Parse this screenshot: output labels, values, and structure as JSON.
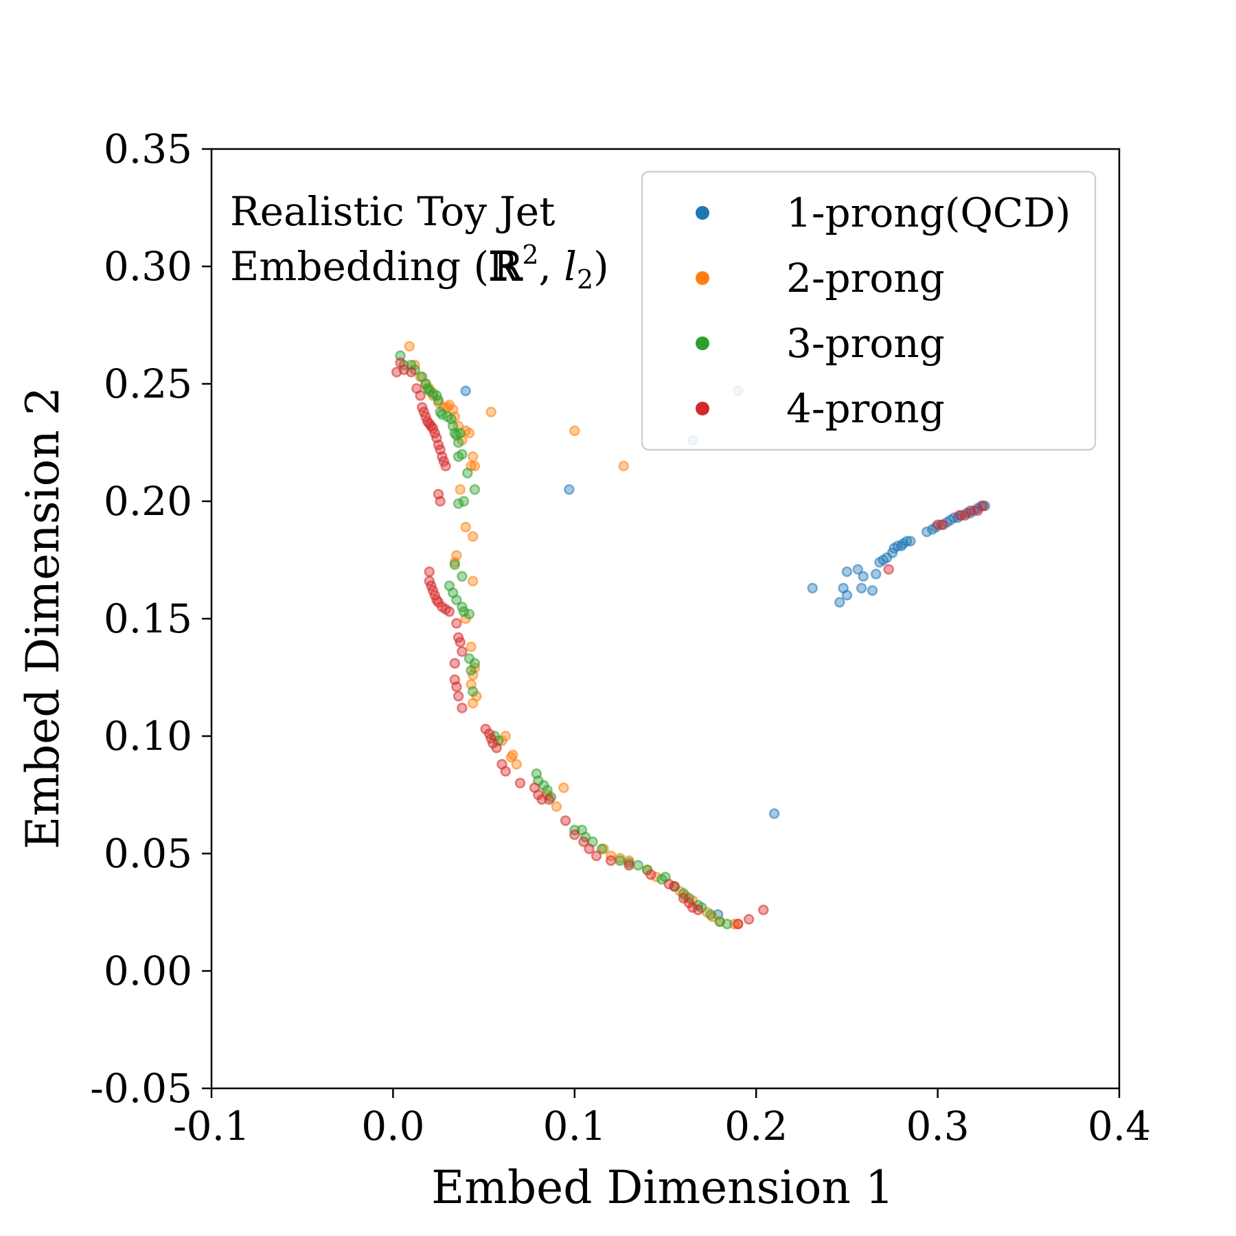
{
  "chart_data": {
    "type": "scatter",
    "xlabel": "Embed Dimension 1",
    "ylabel": "Embed Dimension 2",
    "xlim": [
      -0.1,
      0.4
    ],
    "ylim": [
      -0.05,
      0.35
    ],
    "xticks": [
      -0.1,
      0.0,
      0.1,
      0.2,
      0.3,
      0.4
    ],
    "xtick_labels": [
      "-0.1",
      "0.0",
      "0.1",
      "0.2",
      "0.3",
      "0.4"
    ],
    "yticks": [
      -0.05,
      0.0,
      0.05,
      0.1,
      0.15,
      0.2,
      0.25,
      0.3,
      0.35
    ],
    "ytick_labels": [
      "-0.05",
      "0.00",
      "0.05",
      "0.10",
      "0.15",
      "0.20",
      "0.25",
      "0.30",
      "0.35"
    ],
    "annotation": {
      "line1": "Realistic Toy Jet",
      "line2_prefix": "Embedding (",
      "line2_bb": "ℝ",
      "line2_sup": "2",
      "line2_mid": ", ",
      "line2_l": "l",
      "line2_sub": "2",
      "line2_suffix": ")"
    },
    "legend_position": "top-right",
    "grid": false,
    "series": [
      {
        "name": "1-prong(QCD)",
        "color": "#1f77b4",
        "points": [
          [
            0.04,
            0.247
          ],
          [
            0.097,
            0.205
          ],
          [
            0.165,
            0.226
          ],
          [
            0.19,
            0.247
          ],
          [
            0.179,
            0.024
          ],
          [
            0.21,
            0.067
          ],
          [
            0.231,
            0.163
          ],
          [
            0.246,
            0.157
          ],
          [
            0.248,
            0.163
          ],
          [
            0.25,
            0.16
          ],
          [
            0.25,
            0.17
          ],
          [
            0.256,
            0.171
          ],
          [
            0.258,
            0.163
          ],
          [
            0.259,
            0.168
          ],
          [
            0.264,
            0.162
          ],
          [
            0.266,
            0.169
          ],
          [
            0.268,
            0.174
          ],
          [
            0.27,
            0.175
          ],
          [
            0.272,
            0.176
          ],
          [
            0.275,
            0.178
          ],
          [
            0.276,
            0.18
          ],
          [
            0.278,
            0.181
          ],
          [
            0.28,
            0.181
          ],
          [
            0.281,
            0.182
          ],
          [
            0.283,
            0.183
          ],
          [
            0.285,
            0.183
          ],
          [
            0.294,
            0.187
          ],
          [
            0.297,
            0.188
          ],
          [
            0.299,
            0.189
          ],
          [
            0.302,
            0.19
          ],
          [
            0.305,
            0.191
          ],
          [
            0.307,
            0.192
          ],
          [
            0.309,
            0.193
          ],
          [
            0.311,
            0.193
          ],
          [
            0.313,
            0.194
          ],
          [
            0.316,
            0.195
          ],
          [
            0.318,
            0.195
          ],
          [
            0.32,
            0.196
          ],
          [
            0.322,
            0.197
          ],
          [
            0.324,
            0.198
          ],
          [
            0.326,
            0.198
          ]
        ]
      },
      {
        "name": "2-prong",
        "color": "#ff7f0e",
        "points": [
          [
            0.009,
            0.266
          ],
          [
            0.012,
            0.258
          ],
          [
            0.015,
            0.253
          ],
          [
            0.018,
            0.25
          ],
          [
            0.02,
            0.248
          ],
          [
            0.022,
            0.245
          ],
          [
            0.025,
            0.242
          ],
          [
            0.028,
            0.24
          ],
          [
            0.03,
            0.24
          ],
          [
            0.031,
            0.241
          ],
          [
            0.033,
            0.239
          ],
          [
            0.034,
            0.236
          ],
          [
            0.036,
            0.232
          ],
          [
            0.038,
            0.226
          ],
          [
            0.04,
            0.23
          ],
          [
            0.042,
            0.229
          ],
          [
            0.044,
            0.219
          ],
          [
            0.043,
            0.215
          ],
          [
            0.045,
            0.215
          ],
          [
            0.054,
            0.238
          ],
          [
            0.1,
            0.23
          ],
          [
            0.127,
            0.215
          ],
          [
            0.037,
            0.205
          ],
          [
            0.04,
            0.189
          ],
          [
            0.044,
            0.185
          ],
          [
            0.035,
            0.177
          ],
          [
            0.034,
            0.174
          ],
          [
            0.044,
            0.166
          ],
          [
            0.04,
            0.15
          ],
          [
            0.043,
            0.138
          ],
          [
            0.045,
            0.129
          ],
          [
            0.044,
            0.126
          ],
          [
            0.043,
            0.122
          ],
          [
            0.046,
            0.117
          ],
          [
            0.044,
            0.114
          ],
          [
            0.06,
            0.098
          ],
          [
            0.062,
            0.1
          ],
          [
            0.065,
            0.091
          ],
          [
            0.066,
            0.092
          ],
          [
            0.068,
            0.088
          ],
          [
            0.085,
            0.075
          ],
          [
            0.09,
            0.07
          ],
          [
            0.094,
            0.078
          ],
          [
            0.116,
            0.052
          ],
          [
            0.12,
            0.049
          ],
          [
            0.125,
            0.048
          ],
          [
            0.13,
            0.047
          ],
          [
            0.14,
            0.043
          ],
          [
            0.145,
            0.04
          ],
          [
            0.158,
            0.034
          ],
          [
            0.161,
            0.032
          ],
          [
            0.165,
            0.03
          ],
          [
            0.173,
            0.025
          ],
          [
            0.176,
            0.023
          ],
          [
            0.18,
            0.021
          ],
          [
            0.188,
            0.02
          ],
          [
            0.19,
            0.02
          ]
        ]
      },
      {
        "name": "3-prong",
        "color": "#2ca02c",
        "points": [
          [
            0.004,
            0.262
          ],
          [
            0.006,
            0.258
          ],
          [
            0.01,
            0.258
          ],
          [
            0.012,
            0.256
          ],
          [
            0.016,
            0.253
          ],
          [
            0.018,
            0.25
          ],
          [
            0.019,
            0.248
          ],
          [
            0.02,
            0.247
          ],
          [
            0.022,
            0.246
          ],
          [
            0.024,
            0.245
          ],
          [
            0.025,
            0.243
          ],
          [
            0.026,
            0.238
          ],
          [
            0.027,
            0.237
          ],
          [
            0.03,
            0.236
          ],
          [
            0.032,
            0.235
          ],
          [
            0.033,
            0.232
          ],
          [
            0.034,
            0.229
          ],
          [
            0.035,
            0.228
          ],
          [
            0.036,
            0.225
          ],
          [
            0.037,
            0.229
          ],
          [
            0.038,
            0.22
          ],
          [
            0.036,
            0.219
          ],
          [
            0.041,
            0.212
          ],
          [
            0.045,
            0.205
          ],
          [
            0.036,
            0.199
          ],
          [
            0.039,
            0.2
          ],
          [
            0.034,
            0.173
          ],
          [
            0.038,
            0.168
          ],
          [
            0.031,
            0.164
          ],
          [
            0.033,
            0.161
          ],
          [
            0.035,
            0.158
          ],
          [
            0.038,
            0.155
          ],
          [
            0.039,
            0.153
          ],
          [
            0.042,
            0.152
          ],
          [
            0.042,
            0.133
          ],
          [
            0.045,
            0.131
          ],
          [
            0.043,
            0.128
          ],
          [
            0.044,
            0.119
          ],
          [
            0.056,
            0.1
          ],
          [
            0.058,
            0.098
          ],
          [
            0.079,
            0.084
          ],
          [
            0.08,
            0.081
          ],
          [
            0.083,
            0.079
          ],
          [
            0.085,
            0.077
          ],
          [
            0.087,
            0.074
          ],
          [
            0.1,
            0.06
          ],
          [
            0.104,
            0.06
          ],
          [
            0.106,
            0.057
          ],
          [
            0.11,
            0.055
          ],
          [
            0.115,
            0.052
          ],
          [
            0.125,
            0.047
          ],
          [
            0.13,
            0.046
          ],
          [
            0.135,
            0.045
          ],
          [
            0.14,
            0.043
          ],
          [
            0.148,
            0.039
          ],
          [
            0.15,
            0.04
          ],
          [
            0.155,
            0.036
          ],
          [
            0.16,
            0.033
          ],
          [
            0.163,
            0.031
          ],
          [
            0.168,
            0.028
          ],
          [
            0.17,
            0.027
          ],
          [
            0.175,
            0.024
          ],
          [
            0.18,
            0.021
          ],
          [
            0.184,
            0.02
          ]
        ]
      },
      {
        "name": "4-prong",
        "color": "#d62728",
        "points": [
          [
            0.002,
            0.255
          ],
          [
            0.004,
            0.259
          ],
          [
            0.006,
            0.256
          ],
          [
            0.01,
            0.255
          ],
          [
            0.013,
            0.248
          ],
          [
            0.015,
            0.245
          ],
          [
            0.016,
            0.24
          ],
          [
            0.017,
            0.238
          ],
          [
            0.018,
            0.236
          ],
          [
            0.019,
            0.234
          ],
          [
            0.02,
            0.233
          ],
          [
            0.021,
            0.232
          ],
          [
            0.022,
            0.231
          ],
          [
            0.023,
            0.229
          ],
          [
            0.024,
            0.227
          ],
          [
            0.025,
            0.224
          ],
          [
            0.026,
            0.222
          ],
          [
            0.027,
            0.219
          ],
          [
            0.028,
            0.217
          ],
          [
            0.029,
            0.215
          ],
          [
            0.025,
            0.203
          ],
          [
            0.026,
            0.2
          ],
          [
            0.02,
            0.17
          ],
          [
            0.02,
            0.166
          ],
          [
            0.021,
            0.164
          ],
          [
            0.022,
            0.162
          ],
          [
            0.023,
            0.16
          ],
          [
            0.024,
            0.158
          ],
          [
            0.025,
            0.157
          ],
          [
            0.027,
            0.155
          ],
          [
            0.029,
            0.154
          ],
          [
            0.031,
            0.153
          ],
          [
            0.035,
            0.148
          ],
          [
            0.036,
            0.142
          ],
          [
            0.037,
            0.14
          ],
          [
            0.038,
            0.136
          ],
          [
            0.034,
            0.131
          ],
          [
            0.034,
            0.124
          ],
          [
            0.035,
            0.121
          ],
          [
            0.036,
            0.117
          ],
          [
            0.038,
            0.112
          ],
          [
            0.051,
            0.103
          ],
          [
            0.053,
            0.101
          ],
          [
            0.054,
            0.099
          ],
          [
            0.055,
            0.097
          ],
          [
            0.057,
            0.095
          ],
          [
            0.06,
            0.088
          ],
          [
            0.062,
            0.085
          ],
          [
            0.07,
            0.08
          ],
          [
            0.078,
            0.078
          ],
          [
            0.08,
            0.075
          ],
          [
            0.082,
            0.073
          ],
          [
            0.086,
            0.073
          ],
          [
            0.095,
            0.064
          ],
          [
            0.1,
            0.058
          ],
          [
            0.105,
            0.055
          ],
          [
            0.108,
            0.052
          ],
          [
            0.112,
            0.049
          ],
          [
            0.12,
            0.047
          ],
          [
            0.13,
            0.045
          ],
          [
            0.142,
            0.041
          ],
          [
            0.152,
            0.037
          ],
          [
            0.155,
            0.036
          ],
          [
            0.16,
            0.031
          ],
          [
            0.163,
            0.029
          ],
          [
            0.165,
            0.027
          ],
          [
            0.168,
            0.026
          ],
          [
            0.19,
            0.02
          ],
          [
            0.196,
            0.022
          ],
          [
            0.204,
            0.026
          ],
          [
            0.273,
            0.171
          ],
          [
            0.3,
            0.19
          ],
          [
            0.303,
            0.19
          ],
          [
            0.312,
            0.194
          ],
          [
            0.315,
            0.194
          ],
          [
            0.318,
            0.196
          ],
          [
            0.322,
            0.196
          ],
          [
            0.325,
            0.198
          ]
        ]
      }
    ]
  }
}
